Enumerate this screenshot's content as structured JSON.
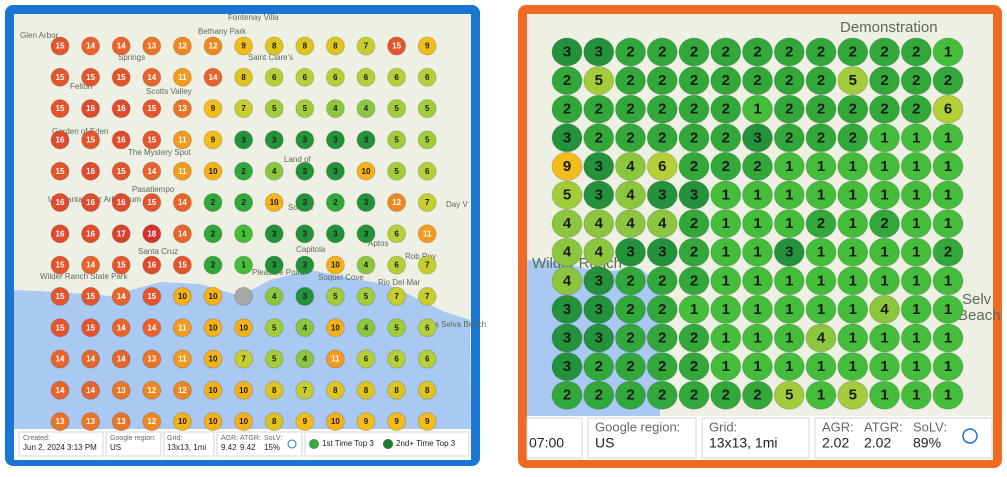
{
  "left": {
    "grid": [
      [
        15,
        14,
        14,
        13,
        12,
        12,
        9,
        8,
        8,
        8,
        7,
        15,
        9
      ],
      [
        15,
        15,
        15,
        14,
        11,
        14,
        8,
        6,
        6,
        6,
        6,
        6,
        6
      ],
      [
        15,
        16,
        16,
        15,
        13,
        9,
        7,
        5,
        5,
        4,
        4,
        5,
        5
      ],
      [
        16,
        15,
        16,
        15,
        11,
        9,
        3,
        3,
        3,
        3,
        3,
        5,
        5
      ],
      [
        15,
        16,
        15,
        14,
        11,
        10,
        2,
        4,
        3,
        3,
        10,
        5,
        6
      ],
      [
        16,
        16,
        16,
        15,
        14,
        2,
        2,
        10,
        3,
        2,
        3,
        12,
        7
      ],
      [
        16,
        16,
        17,
        18,
        14,
        2,
        1,
        3,
        3,
        3,
        3,
        6,
        11
      ],
      [
        15,
        14,
        15,
        16,
        15,
        2,
        1,
        3,
        3,
        10,
        4,
        6,
        7
      ],
      [
        15,
        15,
        14,
        15,
        10,
        10,
        null,
        4,
        3,
        5,
        5,
        7,
        7
      ],
      [
        15,
        15,
        14,
        14,
        11,
        10,
        10,
        5,
        4,
        10,
        4,
        5,
        6
      ],
      [
        14,
        14,
        14,
        13,
        11,
        10,
        7,
        5,
        4,
        11,
        6,
        6,
        6
      ],
      [
        14,
        14,
        13,
        12,
        12,
        10,
        10,
        8,
        7,
        8,
        8,
        8,
        8
      ],
      [
        13,
        13,
        13,
        12,
        10,
        10,
        10,
        8,
        9,
        10,
        9,
        9,
        9
      ]
    ],
    "map_labels": [
      "Glen Arbor",
      "Bethany Park",
      "Fontenay Villa",
      "Springs",
      "Felton",
      "Scotts Valley",
      "Saint Clare's",
      "Garden of Eden",
      "The Mystery Spot",
      "Land of",
      "Pasatiempo",
      "UC Santa Cruz Arboretum",
      "Soquel",
      "Capitola",
      "Aptos",
      "Santa Cruz",
      "Pleasure Point",
      "Soquel Cove",
      "Rio Del Mar",
      "Wilder Ranch State Park",
      "La Selva Beach",
      "Day V",
      "Rob Roy"
    ],
    "footer": {
      "created_label": "Created:",
      "created": "Jun 2, 2024 3:13 PM",
      "region_label": "Google region:",
      "region": "US",
      "grid_label": "Grid:",
      "grid": "13x13, 1mi",
      "agr_label": "AGR:",
      "agr": "9.42",
      "atgr_label": "ATGR:",
      "atgr": "9.42",
      "solv_label": "SoLV:",
      "solv": "15%"
    },
    "legend": [
      "1st Time Top 3",
      "2nd+ Time Top 3"
    ]
  },
  "right": {
    "grid": [
      [
        3,
        3,
        2,
        2,
        2,
        2,
        2,
        2,
        2,
        2,
        2,
        2,
        1
      ],
      [
        2,
        5,
        2,
        2,
        2,
        2,
        2,
        2,
        2,
        5,
        2,
        2,
        2
      ],
      [
        2,
        2,
        2,
        2,
        2,
        2,
        1,
        2,
        2,
        2,
        2,
        2,
        6
      ],
      [
        3,
        2,
        2,
        2,
        2,
        2,
        3,
        2,
        2,
        2,
        1,
        1,
        1
      ],
      [
        9,
        3,
        4,
        6,
        2,
        2,
        2,
        1,
        1,
        1,
        1,
        1,
        1
      ],
      [
        5,
        3,
        4,
        3,
        3,
        1,
        1,
        1,
        1,
        1,
        1,
        1,
        1
      ],
      [
        4,
        4,
        4,
        4,
        2,
        1,
        1,
        1,
        2,
        1,
        2,
        1,
        1
      ],
      [
        4,
        4,
        3,
        3,
        2,
        1,
        1,
        3,
        1,
        1,
        1,
        1,
        2
      ],
      [
        4,
        3,
        2,
        2,
        2,
        1,
        1,
        1,
        1,
        1,
        1,
        1,
        1
      ],
      [
        3,
        3,
        2,
        2,
        1,
        1,
        1,
        1,
        1,
        1,
        4,
        1,
        1
      ],
      [
        3,
        3,
        2,
        2,
        2,
        1,
        1,
        1,
        4,
        1,
        1,
        1,
        1
      ],
      [
        3,
        2,
        2,
        2,
        2,
        1,
        1,
        1,
        1,
        1,
        1,
        1,
        1
      ],
      [
        2,
        2,
        2,
        2,
        2,
        2,
        2,
        5,
        1,
        5,
        1,
        1,
        1
      ]
    ],
    "map_labels": [
      "Demonstration",
      "Wilder Ranch",
      "Selv",
      "Beach"
    ],
    "footer": {
      "created": "07:00",
      "region_label": "Google region:",
      "region": "US",
      "grid_label": "Grid:",
      "grid": "13x13, 1mi",
      "agr_label": "AGR:",
      "agr": "2.02",
      "atgr_label": "ATGR:",
      "atgr": "2.02",
      "solv_label": "SoLV:",
      "solv": "89%"
    }
  }
}
